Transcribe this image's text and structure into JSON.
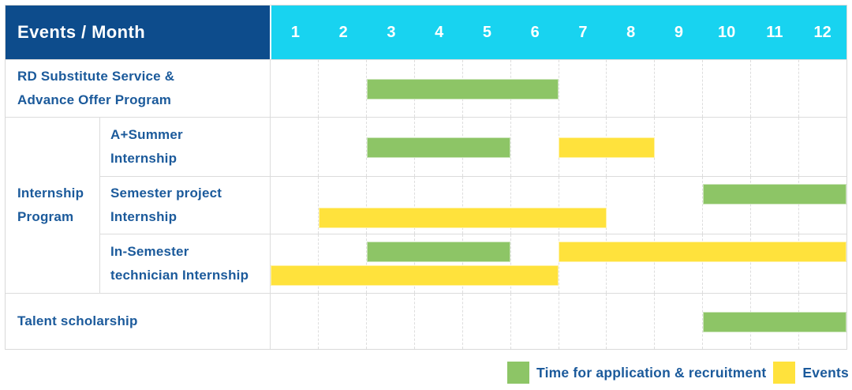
{
  "header": {
    "title": "Events / Month"
  },
  "chart_data": {
    "type": "gantt",
    "title": "Events / Month",
    "months": [
      "1",
      "2",
      "3",
      "4",
      "5",
      "6",
      "7",
      "8",
      "9",
      "10",
      "11",
      "12"
    ],
    "month_range": [
      1,
      12
    ],
    "colors": {
      "header_bg": "#0d4c8c",
      "month_header_bg": "#18d3f0",
      "label_text": "#1b5a9b",
      "recruitment": "#8dc566",
      "event": "#ffe23c"
    },
    "group_label_lines": [
      "Internship",
      "Program"
    ],
    "rows": [
      {
        "id": "rd-substitute",
        "label": "RD Substitute Service & Advance Offer Program",
        "label_lines": [
          "RD Substitute Service &",
          "Advance Offer Program"
        ],
        "bars": [
          {
            "type": "recruitment",
            "start": 3,
            "end": 6,
            "line": "single"
          }
        ]
      },
      {
        "id": "a-summer",
        "group": "Internship Program",
        "label": "A+Summer Internship",
        "label_lines": [
          "A+Summer",
          "Internship"
        ],
        "bars": [
          {
            "type": "recruitment",
            "start": 3,
            "end": 5,
            "line": "single"
          },
          {
            "type": "event",
            "start": 7,
            "end": 8,
            "line": "single"
          }
        ]
      },
      {
        "id": "semester-project",
        "group": "Internship Program",
        "label": "Semester project Internship",
        "label_lines": [
          "Semester project",
          "Internship"
        ],
        "bars": [
          {
            "type": "recruitment",
            "start": 10,
            "end": 12,
            "line": "top"
          },
          {
            "type": "event",
            "start": 2,
            "end": 7,
            "line": "bottom"
          }
        ]
      },
      {
        "id": "in-semester",
        "group": "Internship Program",
        "label": "In-Semester technician Internship",
        "label_lines": [
          "In-Semester",
          "technician Internship"
        ],
        "bars": [
          {
            "type": "recruitment",
            "start": 3,
            "end": 5,
            "line": "top"
          },
          {
            "type": "event",
            "start": 7,
            "end": 12,
            "line": "top"
          },
          {
            "type": "event",
            "start": 1,
            "end": 6,
            "line": "bottom"
          }
        ]
      },
      {
        "id": "talent-scholarship",
        "label": "Talent scholarship",
        "label_lines": [
          "Talent scholarship"
        ],
        "bars": [
          {
            "type": "recruitment",
            "start": 10,
            "end": 12,
            "line": "single"
          }
        ]
      }
    ],
    "legend": [
      {
        "id": "recruitment",
        "label": "Time for application & recruitment",
        "color": "#8dc566"
      },
      {
        "id": "event",
        "label": "Events",
        "color": "#ffe23c"
      }
    ],
    "legend_position": "bottom-right",
    "grid": "dashed-vertical-month-lines"
  }
}
